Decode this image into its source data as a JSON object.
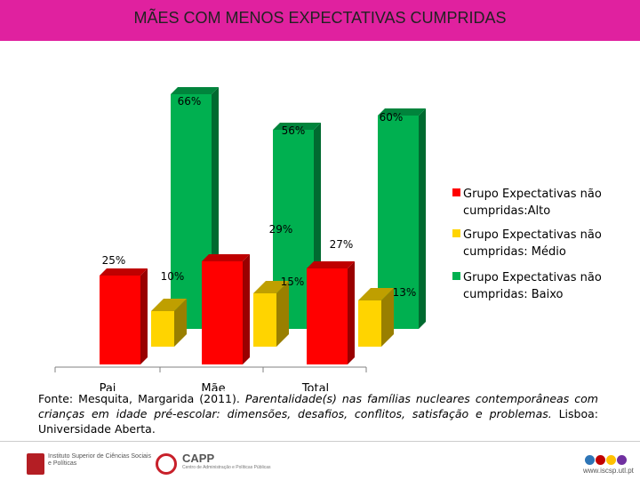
{
  "header": {
    "title": "MÃES COM MENOS EXPECTATIVAS CUMPRIDAS"
  },
  "chart_data": {
    "type": "bar",
    "style": "3d-clustered",
    "categories": [
      "Pai",
      "Mãe",
      "Total"
    ],
    "series": [
      {
        "name": "Grupo Expectativas não cumpridas:Alto",
        "color": "#ff0000",
        "values": [
          25,
          29,
          27
        ],
        "labels": [
          "25%",
          "29%",
          "27%"
        ]
      },
      {
        "name": "Grupo Expectativas não cumpridas: Médio",
        "color": "#ffd400",
        "values": [
          10,
          15,
          13
        ],
        "labels": [
          "10%",
          "15%",
          "13%"
        ]
      },
      {
        "name": "Grupo Expectativas não cumpridas: Baixo",
        "color": "#00b050",
        "values": [
          66,
          56,
          60
        ],
        "labels": [
          "66%",
          "56%",
          "60%"
        ]
      }
    ],
    "legend_position": "right",
    "ylim": [
      0,
      70
    ]
  },
  "legend": {
    "items": [
      {
        "lines": [
          "Grupo Expectativas não",
          "cumpridas:Alto"
        ],
        "color": "#ff0000"
      },
      {
        "lines": [
          "Grupo Expectativas não",
          "cumpridas: Médio"
        ],
        "color": "#ffd400"
      },
      {
        "lines": [
          "Grupo Expectativas não",
          "cumpridas: Baixo"
        ],
        "color": "#00b050"
      }
    ]
  },
  "source": {
    "prefix": "Fonte: Mesquita, Margarida (2011). ",
    "title": "Parentalidade(s) nas famílias nucleares contemporâneas com crianças em idade pré-escolar: dimensões, desafios, conflitos, satisfação e problemas.",
    "suffix": " Lisboa: Universidade Aberta."
  },
  "footer": {
    "iscsp_text": "Instituto Superior de Ciências Sociais e Políticas",
    "capp_name": "CAPP",
    "capp_sub": "Centro de Administração e Políticas Públicas",
    "site_url": "www.iscsp.utl.pt",
    "dot_colors": [
      "#2e75b6",
      "#c00000",
      "#ffc000",
      "#7030a0"
    ]
  }
}
